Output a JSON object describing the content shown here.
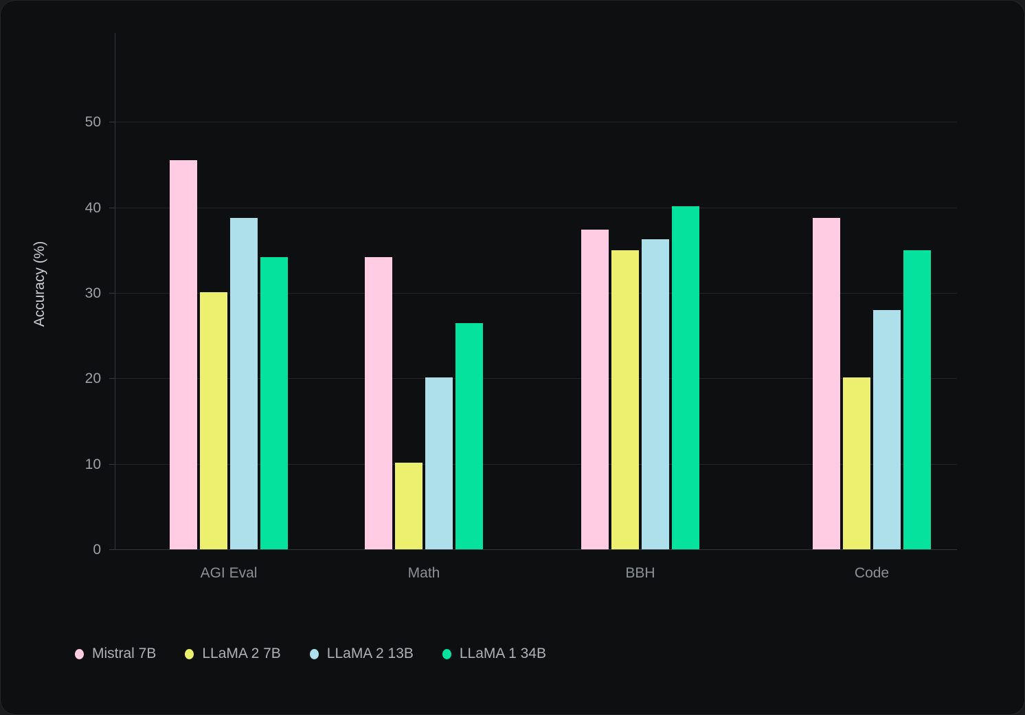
{
  "chart_data": {
    "type": "bar",
    "title": "",
    "categories": [
      "AGI Eval",
      "Math",
      "BBH",
      "Code"
    ],
    "series": [
      {
        "name": "Mistral 7B",
        "color": "#FFCCE3",
        "values": [
          45.5,
          34.2,
          37.4,
          38.8
        ]
      },
      {
        "name": "LLaMA 2 7B",
        "color": "#EDF06E",
        "values": [
          30.1,
          10.1,
          35.0,
          20.1
        ]
      },
      {
        "name": "LLaMA 2 13B",
        "color": "#ADE0EA",
        "values": [
          38.8,
          20.1,
          36.3,
          28.0
        ]
      },
      {
        "name": "LLaMA 1 34B",
        "color": "#05E29E",
        "values": [
          34.2,
          26.5,
          40.1,
          35.0
        ]
      }
    ],
    "xlabel": "",
    "ylabel": "Accuracy (%)",
    "yticks": [
      0,
      10,
      20,
      30,
      40,
      50
    ],
    "ylim": [
      0,
      60.4
    ],
    "grid": true,
    "legend_position": "bottom-left"
  },
  "colors": {
    "card_bg": "#0E0F10",
    "page_bg": "#1B1C1D",
    "grid_line": "#232527",
    "axis_line": "#34383B",
    "tick_label": "#9BA1A7",
    "category_label": "#8B9197",
    "axis_title": "#C9CED3",
    "legend_text": "#ACB2B8"
  }
}
